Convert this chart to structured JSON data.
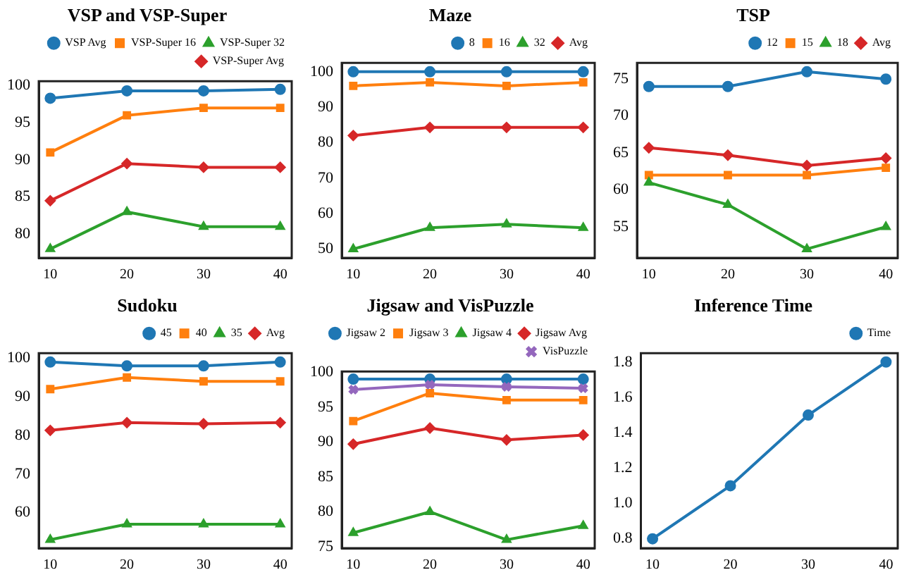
{
  "chart_data": [
    {
      "type": "line",
      "title": "VSP and VSP-Super",
      "x": [
        10,
        20,
        30,
        40
      ],
      "xlim": [
        8.5,
        41.5
      ],
      "xticks": [
        10,
        20,
        30,
        40
      ],
      "ylim": [
        76.8,
        100.6
      ],
      "yticks": [
        80,
        85,
        90,
        95,
        100
      ],
      "legend": "top right",
      "grid": false,
      "series": [
        {
          "name": "VSP Avg",
          "color": "#1f77b4",
          "marker": "circle",
          "values": [
            98.3,
            99.3,
            99.3,
            99.5
          ]
        },
        {
          "name": "VSP-Super 16",
          "color": "#ff7f0e",
          "marker": "square",
          "values": [
            91,
            96,
            97,
            97
          ]
        },
        {
          "name": "VSP-Super 32",
          "color": "#2ca02c",
          "marker": "triangle",
          "values": [
            78,
            83,
            81,
            81
          ]
        },
        {
          "name": "VSP-Super Avg",
          "color": "#d62728",
          "marker": "diamond",
          "values": [
            84.5,
            89.5,
            89,
            89
          ]
        }
      ]
    },
    {
      "type": "line",
      "title": "Maze",
      "x": [
        10,
        20,
        30,
        40
      ],
      "xlim": [
        8.5,
        41.5
      ],
      "xticks": [
        10,
        20,
        30,
        40
      ],
      "ylim": [
        47.5,
        102.5
      ],
      "yticks": [
        50,
        60,
        70,
        80,
        90,
        100
      ],
      "legend": "top right",
      "grid": false,
      "series": [
        {
          "name": "8",
          "color": "#1f77b4",
          "marker": "circle",
          "values": [
            100,
            100,
            100,
            100
          ]
        },
        {
          "name": "16",
          "color": "#ff7f0e",
          "marker": "square",
          "values": [
            96,
            97,
            96,
            97
          ]
        },
        {
          "name": "32",
          "color": "#2ca02c",
          "marker": "triangle",
          "values": [
            50,
            56,
            57,
            56
          ]
        },
        {
          "name": "Avg",
          "color": "#d62728",
          "marker": "diamond",
          "values": [
            82,
            84.3,
            84.3,
            84.3
          ]
        }
      ]
    },
    {
      "type": "line",
      "title": "TSP",
      "x": [
        10,
        20,
        30,
        40
      ],
      "xlim": [
        8.5,
        41.5
      ],
      "xticks": [
        10,
        20,
        30,
        40
      ],
      "ylim": [
        50.8,
        77.2
      ],
      "yticks": [
        55,
        60,
        65,
        70,
        75
      ],
      "legend": "top right",
      "grid": false,
      "series": [
        {
          "name": "12",
          "color": "#1f77b4",
          "marker": "circle",
          "values": [
            74,
            74,
            76,
            75
          ]
        },
        {
          "name": "15",
          "color": "#ff7f0e",
          "marker": "square",
          "values": [
            62,
            62,
            62,
            63
          ]
        },
        {
          "name": "18",
          "color": "#2ca02c",
          "marker": "triangle",
          "values": [
            61,
            58,
            52,
            55
          ]
        },
        {
          "name": "Avg",
          "color": "#d62728",
          "marker": "diamond",
          "values": [
            65.7,
            64.7,
            63.3,
            64.3
          ]
        }
      ]
    },
    {
      "type": "line",
      "title": "Sudoku",
      "x": [
        10,
        20,
        30,
        40
      ],
      "xlim": [
        8.5,
        41.5
      ],
      "xticks": [
        10,
        20,
        30,
        40
      ],
      "ylim": [
        50.8,
        101.3
      ],
      "yticks": [
        60,
        70,
        80,
        90,
        100
      ],
      "legend": "top right",
      "grid": false,
      "series": [
        {
          "name": "45",
          "color": "#1f77b4",
          "marker": "circle",
          "values": [
            99,
            98,
            98,
            99
          ]
        },
        {
          "name": "40",
          "color": "#ff7f0e",
          "marker": "square",
          "values": [
            92,
            95,
            94,
            94
          ]
        },
        {
          "name": "35",
          "color": "#2ca02c",
          "marker": "triangle",
          "values": [
            53,
            57,
            57,
            57
          ]
        },
        {
          "name": "Avg",
          "color": "#d62728",
          "marker": "diamond",
          "values": [
            81.3,
            83.3,
            83,
            83.3
          ]
        }
      ]
    },
    {
      "type": "line",
      "title": "Jigsaw and VisPuzzle",
      "x": [
        10,
        20,
        30,
        40
      ],
      "xlim": [
        8.5,
        41.5
      ],
      "xticks": [
        10,
        20,
        30,
        40
      ],
      "ylim": [
        74.8,
        100.1
      ],
      "yticks": [
        75,
        80,
        85,
        90,
        95,
        100
      ],
      "legend": "top right",
      "grid": false,
      "series": [
        {
          "name": "Jigsaw 2",
          "color": "#1f77b4",
          "marker": "circle",
          "values": [
            99,
            99,
            99,
            99
          ]
        },
        {
          "name": "Jigsaw 3",
          "color": "#ff7f0e",
          "marker": "square",
          "values": [
            93,
            97,
            96,
            96
          ]
        },
        {
          "name": "Jigsaw 4",
          "color": "#2ca02c",
          "marker": "triangle",
          "values": [
            77,
            80,
            76,
            78
          ]
        },
        {
          "name": "Jigsaw Avg",
          "color": "#d62728",
          "marker": "diamond",
          "values": [
            89.7,
            92,
            90.3,
            91
          ]
        },
        {
          "name": "VisPuzzle",
          "color": "#9467bd",
          "marker": "cross",
          "values": [
            97.5,
            98.2,
            97.9,
            97.7
          ]
        }
      ]
    },
    {
      "type": "line",
      "title": "Inference Time",
      "x": [
        10,
        20,
        30,
        40
      ],
      "xlim": [
        8.5,
        41.5
      ],
      "xticks": [
        10,
        20,
        30,
        40
      ],
      "ylim": [
        0.747,
        1.85
      ],
      "yticks": [
        {
          "value": 0.8,
          "label": "0.8"
        },
        {
          "value": 1,
          "label": "1.0"
        },
        {
          "value": 1.2,
          "label": "1.2"
        },
        {
          "value": 1.4,
          "label": "1.4"
        },
        {
          "value": 1.6,
          "label": "1.6"
        },
        {
          "value": 1.8,
          "label": "1.8"
        }
      ],
      "legend": "top right",
      "grid": false,
      "series": [
        {
          "name": "Time",
          "color": "#1f77b4",
          "marker": "circle",
          "values": [
            0.8,
            1.1,
            1.5,
            1.8
          ]
        }
      ]
    }
  ]
}
